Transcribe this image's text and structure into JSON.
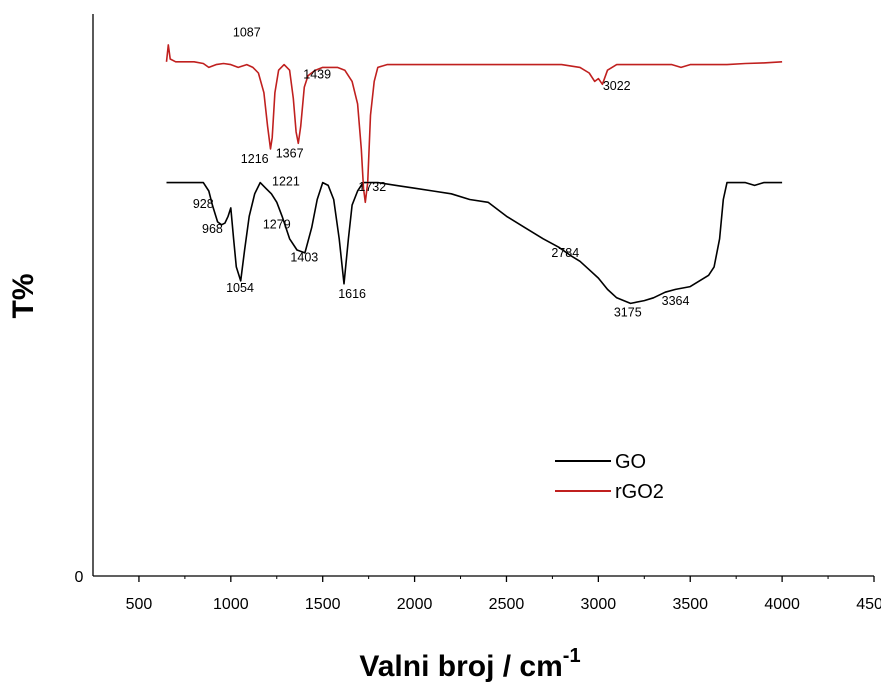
{
  "chart_data": {
    "type": "line",
    "xlabel": "Valni broj / cm",
    "xlabel_superscript": "-1",
    "ylabel": "T%",
    "xlim": [
      250,
      4500
    ],
    "xticks": [
      "500",
      "1000",
      "1500",
      "2000",
      "2500",
      "3000",
      "3500",
      "4000",
      "4500"
    ],
    "ytick_label": "0",
    "legend_position": "bottom-right",
    "series": [
      {
        "name": "GO",
        "color": "#000000",
        "points": [
          [
            650,
            0.7
          ],
          [
            700,
            0.7
          ],
          [
            780,
            0.7
          ],
          [
            850,
            0.7
          ],
          [
            880,
            0.685
          ],
          [
            900,
            0.66
          ],
          [
            928,
            0.63
          ],
          [
            950,
            0.625
          ],
          [
            968,
            0.628
          ],
          [
            985,
            0.64
          ],
          [
            1000,
            0.655
          ],
          [
            1015,
            0.6
          ],
          [
            1030,
            0.55
          ],
          [
            1054,
            0.525
          ],
          [
            1075,
            0.58
          ],
          [
            1100,
            0.64
          ],
          [
            1130,
            0.68
          ],
          [
            1160,
            0.7
          ],
          [
            1190,
            0.69
          ],
          [
            1221,
            0.68
          ],
          [
            1250,
            0.665
          ],
          [
            1279,
            0.64
          ],
          [
            1320,
            0.6
          ],
          [
            1360,
            0.58
          ],
          [
            1403,
            0.575
          ],
          [
            1440,
            0.62
          ],
          [
            1470,
            0.67
          ],
          [
            1500,
            0.7
          ],
          [
            1530,
            0.695
          ],
          [
            1560,
            0.67
          ],
          [
            1590,
            0.6
          ],
          [
            1616,
            0.52
          ],
          [
            1640,
            0.6
          ],
          [
            1660,
            0.66
          ],
          [
            1690,
            0.685
          ],
          [
            1720,
            0.7
          ],
          [
            1800,
            0.7
          ],
          [
            1900,
            0.695
          ],
          [
            2000,
            0.69
          ],
          [
            2100,
            0.685
          ],
          [
            2200,
            0.68
          ],
          [
            2300,
            0.67
          ],
          [
            2400,
            0.665
          ],
          [
            2500,
            0.64
          ],
          [
            2600,
            0.62
          ],
          [
            2700,
            0.6
          ],
          [
            2784,
            0.585
          ],
          [
            2850,
            0.57
          ],
          [
            2900,
            0.56
          ],
          [
            2950,
            0.545
          ],
          [
            3000,
            0.53
          ],
          [
            3050,
            0.51
          ],
          [
            3100,
            0.495
          ],
          [
            3175,
            0.485
          ],
          [
            3250,
            0.49
          ],
          [
            3300,
            0.495
          ],
          [
            3364,
            0.505
          ],
          [
            3420,
            0.51
          ],
          [
            3500,
            0.515
          ],
          [
            3550,
            0.525
          ],
          [
            3600,
            0.535
          ],
          [
            3630,
            0.55
          ],
          [
            3660,
            0.6
          ],
          [
            3680,
            0.67
          ],
          [
            3700,
            0.7
          ],
          [
            3750,
            0.7
          ],
          [
            3800,
            0.7
          ],
          [
            3850,
            0.695
          ],
          [
            3900,
            0.7
          ],
          [
            3950,
            0.7
          ],
          [
            4000,
            0.7
          ]
        ]
      },
      {
        "name": "rGO2",
        "color": "#c0201f",
        "points": [
          [
            650,
            0.915
          ],
          [
            660,
            0.945
          ],
          [
            670,
            0.92
          ],
          [
            700,
            0.915
          ],
          [
            750,
            0.915
          ],
          [
            800,
            0.915
          ],
          [
            850,
            0.912
          ],
          [
            880,
            0.905
          ],
          [
            920,
            0.91
          ],
          [
            960,
            0.912
          ],
          [
            1000,
            0.91
          ],
          [
            1040,
            0.905
          ],
          [
            1087,
            0.91
          ],
          [
            1120,
            0.905
          ],
          [
            1150,
            0.895
          ],
          [
            1180,
            0.86
          ],
          [
            1200,
            0.8
          ],
          [
            1216,
            0.76
          ],
          [
            1225,
            0.78
          ],
          [
            1240,
            0.86
          ],
          [
            1260,
            0.9
          ],
          [
            1290,
            0.91
          ],
          [
            1320,
            0.9
          ],
          [
            1340,
            0.85
          ],
          [
            1355,
            0.79
          ],
          [
            1367,
            0.77
          ],
          [
            1380,
            0.8
          ],
          [
            1400,
            0.87
          ],
          [
            1420,
            0.89
          ],
          [
            1439,
            0.895
          ],
          [
            1460,
            0.9
          ],
          [
            1500,
            0.905
          ],
          [
            1540,
            0.905
          ],
          [
            1580,
            0.905
          ],
          [
            1620,
            0.9
          ],
          [
            1660,
            0.88
          ],
          [
            1690,
            0.84
          ],
          [
            1710,
            0.76
          ],
          [
            1722,
            0.69
          ],
          [
            1732,
            0.665
          ],
          [
            1745,
            0.7
          ],
          [
            1760,
            0.82
          ],
          [
            1780,
            0.88
          ],
          [
            1800,
            0.905
          ],
          [
            1850,
            0.91
          ],
          [
            1900,
            0.91
          ],
          [
            2000,
            0.91
          ],
          [
            2100,
            0.91
          ],
          [
            2200,
            0.91
          ],
          [
            2300,
            0.91
          ],
          [
            2400,
            0.91
          ],
          [
            2500,
            0.91
          ],
          [
            2600,
            0.91
          ],
          [
            2700,
            0.91
          ],
          [
            2800,
            0.91
          ],
          [
            2900,
            0.905
          ],
          [
            2950,
            0.895
          ],
          [
            2980,
            0.88
          ],
          [
            3000,
            0.885
          ],
          [
            3022,
            0.875
          ],
          [
            3050,
            0.9
          ],
          [
            3100,
            0.91
          ],
          [
            3200,
            0.91
          ],
          [
            3300,
            0.91
          ],
          [
            3400,
            0.91
          ],
          [
            3450,
            0.905
          ],
          [
            3500,
            0.91
          ],
          [
            3600,
            0.91
          ],
          [
            3700,
            0.91
          ],
          [
            3800,
            0.912
          ],
          [
            3900,
            0.913
          ],
          [
            4000,
            0.915
          ]
        ]
      }
    ],
    "annotations": [
      {
        "text": "1087",
        "x": 1087,
        "y": 0.96
      },
      {
        "text": "1439",
        "x": 1470,
        "y": 0.885
      },
      {
        "text": "3022",
        "x": 3100,
        "y": 0.865
      },
      {
        "text": "1216",
        "x": 1130,
        "y": 0.735
      },
      {
        "text": "1367",
        "x": 1320,
        "y": 0.745
      },
      {
        "text": "1732",
        "x": 1770,
        "y": 0.685
      },
      {
        "text": "1221",
        "x": 1300,
        "y": 0.695
      },
      {
        "text": "928",
        "x": 850,
        "y": 0.655
      },
      {
        "text": "968",
        "x": 900,
        "y": 0.61
      },
      {
        "text": "1279",
        "x": 1250,
        "y": 0.618
      },
      {
        "text": "1054",
        "x": 1050,
        "y": 0.505
      },
      {
        "text": "1403",
        "x": 1400,
        "y": 0.56
      },
      {
        "text": "1616",
        "x": 1660,
        "y": 0.495
      },
      {
        "text": "2784",
        "x": 2820,
        "y": 0.568
      },
      {
        "text": "3175",
        "x": 3160,
        "y": 0.462
      },
      {
        "text": "3364",
        "x": 3420,
        "y": 0.482
      }
    ]
  }
}
